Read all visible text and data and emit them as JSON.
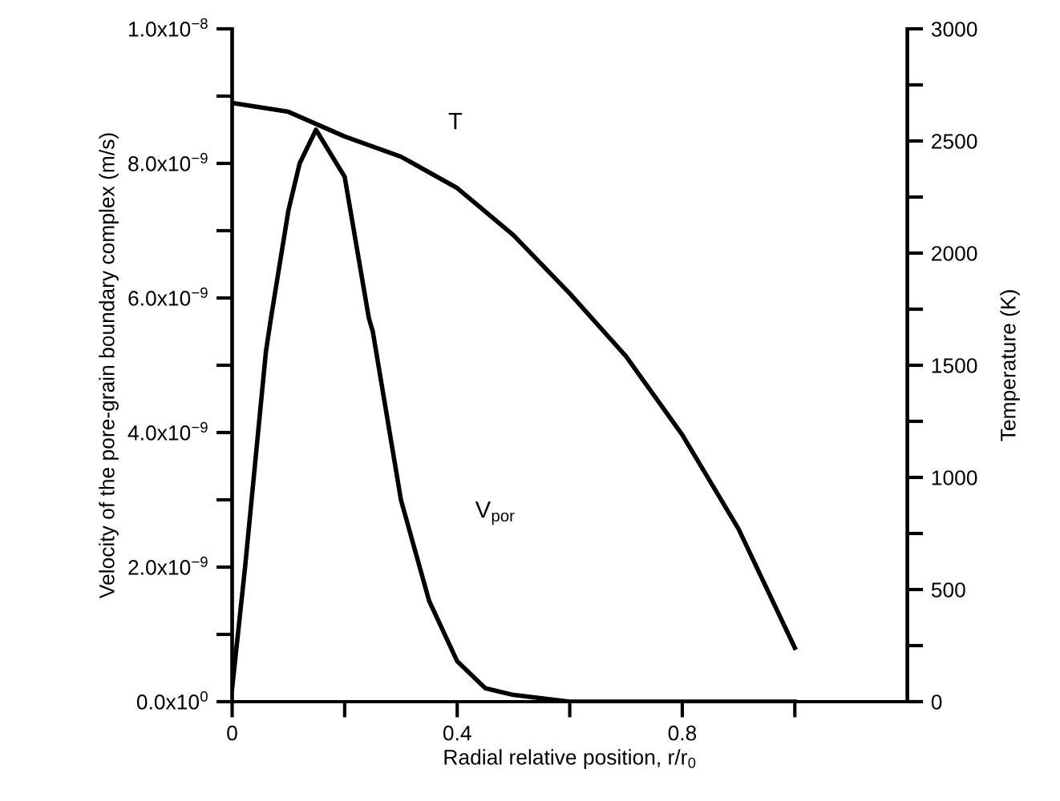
{
  "chart_data": {
    "type": "line",
    "xlabel": "Radial relative position, r/r$_{0}$",
    "ylabel": "Velocity of the pore-grain boundary complex (m/s)",
    "y2label": "Temperature (K)",
    "xlim": [
      0,
      1.2
    ],
    "xticks": [
      0,
      {
        "value": 0.2,
        "label": null
      },
      0.4,
      {
        "value": 0.6,
        "label": null
      },
      0.8,
      {
        "value": 1.0,
        "label": null
      }
    ],
    "ylim": [
      0,
      1e-08
    ],
    "yticks": [
      {
        "value": 0,
        "label": "0.0x10$^{0}$"
      },
      {
        "value": 1e-09,
        "label": null
      },
      {
        "value": 2e-09,
        "label": "2.0x10$^{−9}$"
      },
      {
        "value": 3e-09,
        "label": null
      },
      {
        "value": 4e-09,
        "label": "4.0x10$^{−9}$"
      },
      {
        "value": 5e-09,
        "label": null
      },
      {
        "value": 6e-09,
        "label": "6.0x10$^{−9}$"
      },
      {
        "value": 7e-09,
        "label": null
      },
      {
        "value": 8e-09,
        "label": "8.0x10$^{−9}$"
      },
      {
        "value": 9e-09,
        "label": null
      },
      {
        "value": 1e-08,
        "label": "1.0x10$^{−8}$"
      }
    ],
    "y2lim": [
      0,
      3000
    ],
    "y2ticks": [
      0,
      {
        "value": 250,
        "label": null
      },
      500,
      {
        "value": 750,
        "label": null
      },
      1000,
      {
        "value": 1250,
        "label": null
      },
      1500,
      {
        "value": 1750,
        "label": null
      },
      2000,
      {
        "value": 2250,
        "label": null
      },
      2500,
      {
        "value": 2750,
        "label": null
      },
      3000
    ],
    "series": [
      {
        "name": "V$_{por}$",
        "color": "#000000",
        "x": [
          0,
          0.023,
          0.06,
          0.069,
          0.1,
          0.12,
          0.149,
          0.2,
          0.243,
          0.25,
          0.3,
          0.35,
          0.4,
          0.45,
          0.5,
          0.6,
          0.8,
          1.0
        ],
        "values": [
          2e-10,
          2e-09,
          5.2e-09,
          5.7e-09,
          7.3e-09,
          8e-09,
          8.5e-09,
          7.8e-09,
          5.7e-09,
          5.5e-09,
          3e-09,
          1.5e-09,
          6e-10,
          2e-10,
          1e-10,
          0,
          0,
          0
        ]
      },
      {
        "name": "T",
        "color": "#000000",
        "axis": "y2",
        "x": [
          0,
          0.1,
          0.2,
          0.3,
          0.4,
          0.5,
          0.6,
          0.7,
          0.8,
          0.9,
          1.0
        ],
        "values": [
          2670,
          2630,
          2520,
          2430,
          2290,
          2080,
          1820,
          1540,
          1190,
          770,
          240
        ]
      }
    ],
    "grid": false,
    "legend": false,
    "line_style": "solid",
    "marker": "none"
  }
}
